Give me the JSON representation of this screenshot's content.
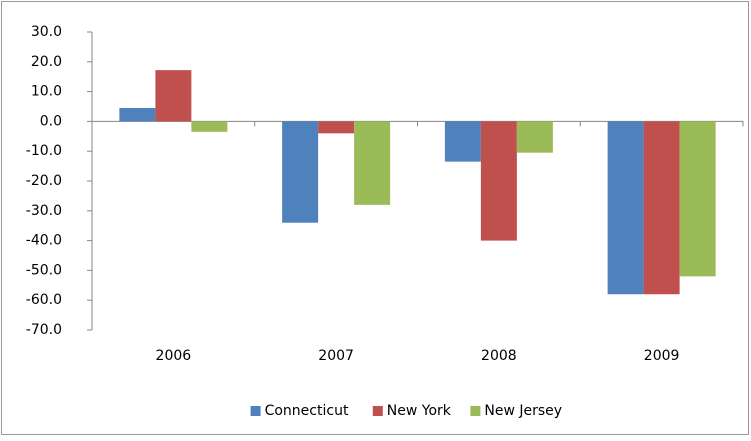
{
  "chart_data": {
    "type": "bar",
    "categories": [
      "2006",
      "2007",
      "2008",
      "2009"
    ],
    "series": [
      {
        "name": "Connecticut",
        "color": "#4f81bd",
        "values": [
          4.5,
          -34,
          -13.5,
          -58
        ]
      },
      {
        "name": "New York",
        "color": "#c0504d",
        "values": [
          17.2,
          -4,
          -40,
          -58
        ]
      },
      {
        "name": "New Jersey",
        "color": "#9bbb59",
        "values": [
          -3.5,
          -28,
          -10.5,
          -52
        ]
      }
    ],
    "ylim": [
      -70,
      30
    ],
    "yticks": [
      {
        "value": -70,
        "label": "-70.0"
      },
      {
        "value": -60,
        "label": "-60.0"
      },
      {
        "value": -50,
        "label": "-50.0"
      },
      {
        "value": -40,
        "label": "-40.0"
      },
      {
        "value": -30,
        "label": "-30.0"
      },
      {
        "value": -20,
        "label": "-20.0"
      },
      {
        "value": -10,
        "label": "-10.0"
      },
      {
        "value": 0,
        "label": "0.0"
      },
      {
        "value": 10,
        "label": "10.0"
      },
      {
        "value": 20,
        "label": "20.0"
      },
      {
        "value": 30,
        "label": "30.0"
      }
    ],
    "grid": false,
    "legend": "bottom"
  }
}
